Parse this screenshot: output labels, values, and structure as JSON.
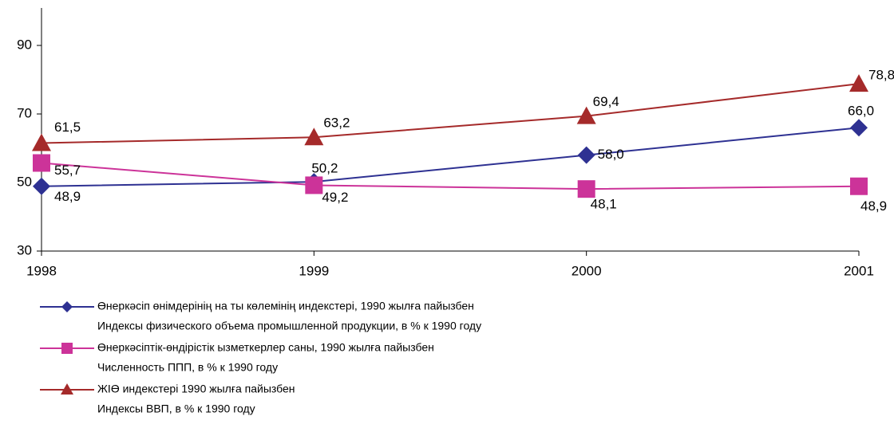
{
  "chart_data": {
    "type": "line",
    "categories": [
      "1998",
      "1999",
      "2000",
      "2001"
    ],
    "ylim": [
      30,
      100
    ],
    "yticks": [
      30,
      50,
      70,
      90
    ],
    "series": [
      {
        "name": "Өнеркәсіп өнімдерінің на  ты көлемінің индекстері, 1990 жылға пайызбен",
        "name_ru": "Индексы физического объема промышленной продукции, в % к 1990 году",
        "color": "#2e3192",
        "marker": "diamond",
        "values": [
          48.9,
          50.2,
          58.0,
          66.0
        ],
        "value_labels": [
          "48,9",
          "50,2",
          "58,0",
          "66,0"
        ]
      },
      {
        "name": "Өнеркәсіптік-өндірістік  ызметкерлер саны, 1990 жылға пайызбен",
        "name_ru": "Численность ППП, в % к 1990 году",
        "color": "#cc3399",
        "marker": "square",
        "values": [
          55.7,
          49.2,
          48.1,
          48.9
        ],
        "value_labels": [
          "55,7",
          "49,2",
          "48,1",
          "48,9"
        ]
      },
      {
        "name": "ЖІӨ индекстері 1990 жылға пайызбен",
        "name_ru": "Индексы ВВП, в % к 1990 году",
        "color": "#a52a2a",
        "marker": "triangle",
        "values": [
          61.5,
          63.2,
          69.4,
          78.8
        ],
        "value_labels": [
          "61,5",
          "63,2",
          "69,4",
          "78,8"
        ]
      }
    ]
  }
}
